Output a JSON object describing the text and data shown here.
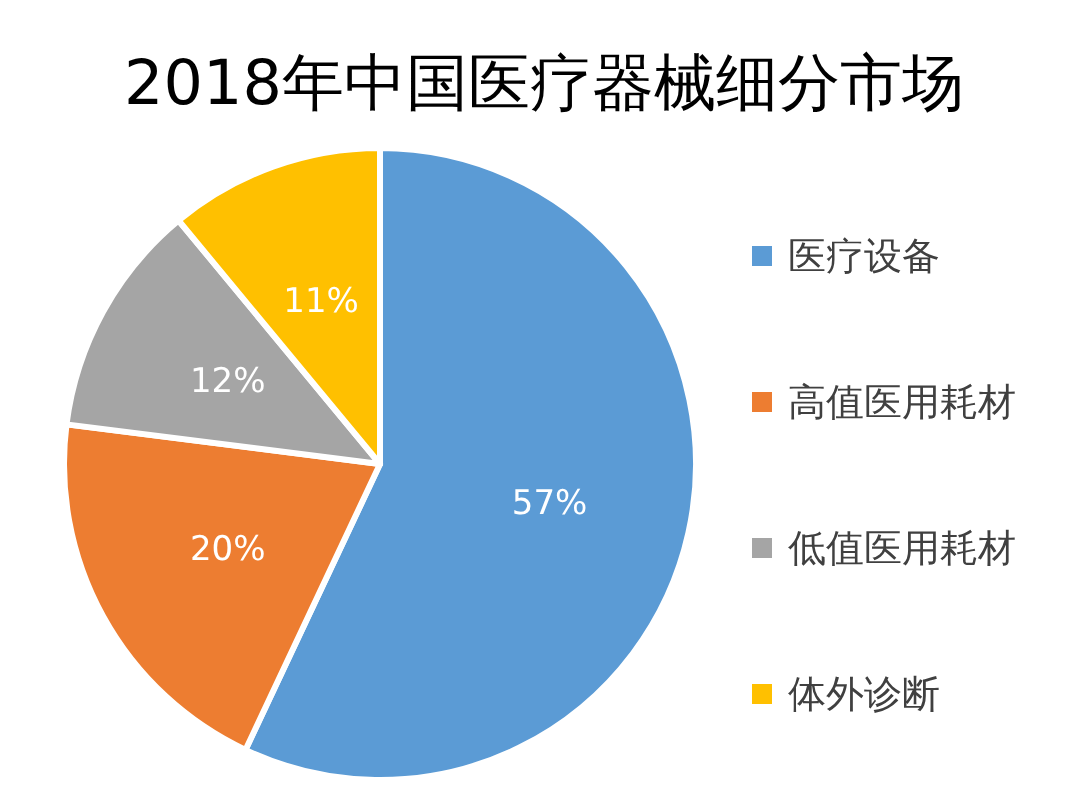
{
  "chart_data": {
    "type": "pie",
    "title": "2018年中国医疗器械细分市场",
    "categories": [
      "医疗设备",
      "高值医用耗材",
      "低值医用耗材",
      "体外诊断"
    ],
    "values": [
      57,
      20,
      12,
      11
    ],
    "value_labels": [
      "57%",
      "20%",
      "12%",
      "11%"
    ],
    "colors": [
      "#5b9bd5",
      "#ed7d31",
      "#a5a5a5",
      "#ffc000"
    ],
    "legend": "right"
  }
}
